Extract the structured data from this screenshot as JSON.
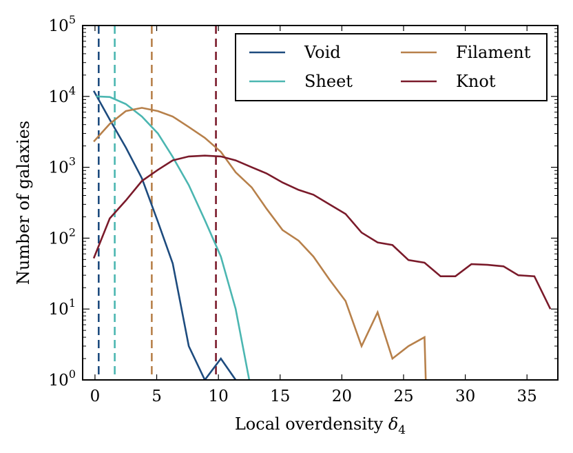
{
  "chart_data": {
    "type": "line",
    "title": "",
    "xlabel": "Local overdensity δ4",
    "xlabel_main": "Local overdensity ",
    "xlabel_symbol": "δ",
    "xlabel_sub": "4",
    "ylabel": "Number of galaxies",
    "xlim": [
      -1,
      37.5
    ],
    "ylim": [
      1,
      100000
    ],
    "yscale": "log",
    "xticks": [
      0,
      5,
      10,
      15,
      20,
      25,
      30,
      35
    ],
    "yticks": [
      {
        "value": 1,
        "base": "10",
        "exp": "0"
      },
      {
        "value": 10,
        "base": "10",
        "exp": "1"
      },
      {
        "value": 100,
        "base": "10",
        "exp": "2"
      },
      {
        "value": 1000,
        "base": "10",
        "exp": "3"
      },
      {
        "value": 10000,
        "base": "10",
        "exp": "4"
      },
      {
        "value": 100000,
        "base": "10",
        "exp": "5"
      }
    ],
    "grid": false,
    "legend_position": "top-right",
    "series": [
      {
        "name": "Void",
        "color": "#1d4b7e",
        "median": 0.3,
        "x": [
          -0.1,
          1.2,
          2.5,
          3.8,
          5.1,
          6.3,
          7.6,
          8.9,
          10.2,
          11.4
        ],
        "y": [
          12000,
          4700,
          1900,
          700,
          170,
          44,
          3,
          1,
          2,
          1
        ]
      },
      {
        "name": "Sheet",
        "color": "#4bb6b1",
        "median": 1.6,
        "x": [
          0.1,
          1.2,
          2.5,
          3.8,
          5.1,
          6.3,
          7.6,
          8.9,
          10.2,
          11.4,
          12.5
        ],
        "y": [
          10000,
          9800,
          7800,
          5200,
          3000,
          1400,
          560,
          180,
          55,
          10,
          1
        ]
      },
      {
        "name": "Filament",
        "color": "#b7804a",
        "median": 4.6,
        "x": [
          -0.1,
          1.2,
          2.5,
          3.8,
          5.1,
          6.3,
          7.6,
          8.9,
          10.2,
          11.4,
          12.7,
          13.9,
          15.2,
          16.5,
          17.7,
          19.0,
          20.3,
          21.6,
          22.9,
          24.1,
          25.4,
          26.7,
          26.8
        ],
        "y": [
          2300,
          4100,
          6200,
          6900,
          6200,
          5200,
          3700,
          2600,
          1650,
          850,
          520,
          260,
          130,
          92,
          55,
          26,
          13,
          3,
          9,
          2,
          3,
          4,
          1
        ]
      },
      {
        "name": "Knot",
        "color": "#7a1a2a",
        "median": 9.8,
        "x": [
          -0.1,
          1.2,
          2.5,
          3.8,
          5.1,
          6.3,
          7.6,
          8.9,
          10.2,
          11.4,
          12.7,
          13.9,
          15.2,
          16.5,
          17.7,
          19.0,
          20.3,
          21.6,
          22.9,
          24.1,
          25.4,
          26.7,
          28.0,
          29.2,
          30.5,
          31.8,
          33.1,
          34.3,
          35.6,
          36.9
        ],
        "y": [
          52,
          190,
          340,
          640,
          920,
          1250,
          1420,
          1460,
          1420,
          1250,
          1000,
          820,
          610,
          480,
          410,
          300,
          220,
          120,
          87,
          80,
          49,
          45,
          29,
          29,
          43,
          42,
          40,
          30,
          29,
          10
        ]
      }
    ]
  }
}
